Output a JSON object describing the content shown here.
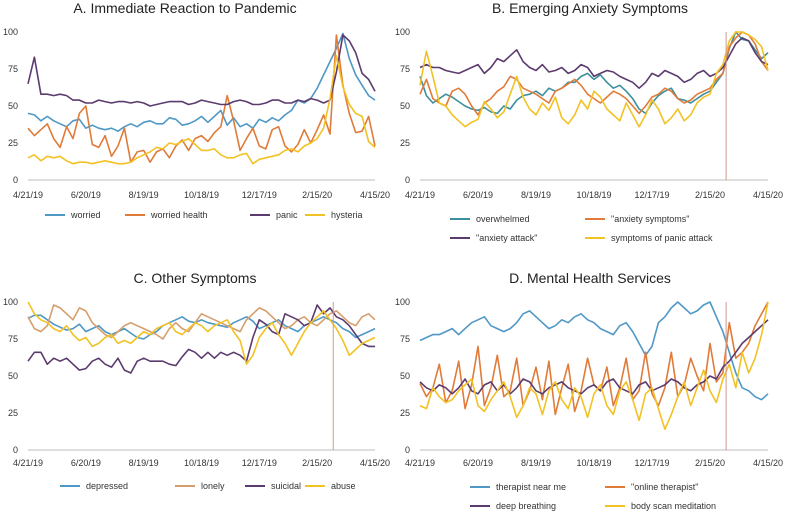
{
  "chart_data": [
    {
      "type": "line",
      "title": "A.  Immediate Reaction to Pandemic",
      "ylim": [
        0,
        100
      ],
      "yticks": [
        0,
        25,
        50,
        75,
        100
      ],
      "xticks": [
        "4/21/19",
        "6/20/19",
        "8/19/19",
        "10/18/19",
        "12/17/19",
        "2/15/20",
        "4/15/20"
      ],
      "grid": false,
      "legend": "bottom",
      "marker_line": false,
      "series": [
        {
          "name": "worried",
          "color": "#4f98c6",
          "values": [
            45,
            44,
            40,
            43,
            40,
            38,
            36,
            40,
            41,
            35,
            37,
            35,
            34,
            35,
            33,
            36,
            38,
            36,
            39,
            40,
            38,
            38,
            42,
            41,
            37,
            38,
            40,
            43,
            39,
            43,
            47,
            37,
            42,
            36,
            38,
            35,
            41,
            39,
            42,
            40,
            44,
            47,
            54,
            52,
            55,
            62,
            71,
            80,
            89,
            99,
            82,
            71,
            64,
            57,
            54
          ]
        },
        {
          "name": "worried health",
          "color": "#e07b39",
          "values": [
            35,
            30,
            34,
            38,
            28,
            22,
            36,
            28,
            45,
            50,
            24,
            22,
            30,
            16,
            23,
            35,
            12,
            19,
            20,
            12,
            19,
            21,
            15,
            23,
            27,
            20,
            28,
            30,
            26,
            32,
            36,
            57,
            40,
            20,
            28,
            35,
            23,
            21,
            34,
            36,
            23,
            19,
            24,
            34,
            25,
            34,
            44,
            31,
            98,
            64,
            45,
            32,
            33,
            43,
            23
          ]
        },
        {
          "name": "panic",
          "color": "#5c3b6e",
          "values": [
            65,
            83,
            58,
            58,
            57,
            58,
            57,
            54,
            54,
            52,
            52,
            54,
            53,
            52,
            53,
            53,
            52,
            53,
            52,
            50,
            51,
            52,
            53,
            53,
            53,
            51,
            52,
            54,
            53,
            52,
            51,
            51,
            53,
            54,
            53,
            51,
            51,
            52,
            54,
            54,
            52,
            52,
            54,
            53,
            55,
            54,
            52,
            54,
            73,
            98,
            94,
            86,
            72,
            68,
            60
          ]
        },
        {
          "name": "hysteria",
          "color": "#f2c224",
          "values": [
            15,
            17,
            13,
            16,
            15,
            16,
            13,
            11,
            12,
            12,
            11,
            12,
            13,
            12,
            11,
            11,
            12,
            15,
            17,
            19,
            22,
            21,
            25,
            24,
            26,
            28,
            24,
            20,
            20,
            21,
            17,
            15,
            15,
            17,
            18,
            11,
            14,
            15,
            16,
            17,
            20,
            21,
            19,
            23,
            25,
            28,
            35,
            55,
            84,
            63,
            51,
            45,
            43,
            26,
            22
          ]
        }
      ]
    },
    {
      "type": "line",
      "title": "B.  Emerging Anxiety Symptoms",
      "ylim": [
        0,
        100
      ],
      "yticks": [
        0,
        25,
        50,
        75,
        100
      ],
      "xticks": [
        "4/21/19",
        "6/20/19",
        "8/19/19",
        "10/18/19",
        "12/17/19",
        "2/15/20",
        "4/15/20"
      ],
      "grid": false,
      "legend": "bottom",
      "marker_line": true,
      "series": [
        {
          "name": "overwhelmed",
          "color": "#3c8f9c",
          "values": [
            70,
            57,
            52,
            55,
            58,
            56,
            53,
            50,
            48,
            47,
            49,
            46,
            45,
            50,
            48,
            54,
            57,
            58,
            60,
            57,
            62,
            60,
            62,
            66,
            66,
            70,
            72,
            68,
            71,
            66,
            62,
            64,
            60,
            55,
            48,
            45,
            52,
            57,
            60,
            62,
            55,
            54,
            52,
            55,
            58,
            60,
            66,
            72,
            89,
            100,
            95,
            94,
            88,
            82,
            86
          ]
        },
        {
          "name": "\"anxiety symptoms\"",
          "color": "#e07b39",
          "values": [
            58,
            68,
            55,
            52,
            50,
            60,
            62,
            58,
            50,
            44,
            52,
            55,
            60,
            63,
            70,
            68,
            62,
            60,
            58,
            55,
            52,
            60,
            62,
            65,
            68,
            64,
            58,
            55,
            52,
            56,
            60,
            58,
            55,
            50,
            45,
            50,
            56,
            58,
            62,
            60,
            55,
            52,
            54,
            58,
            60,
            62,
            68,
            72,
            90,
            96,
            100,
            98,
            92,
            80,
            74
          ]
        },
        {
          "name": "\"anxiety attack\"",
          "color": "#5c3b6e",
          "values": [
            76,
            78,
            76,
            76,
            74,
            73,
            72,
            74,
            76,
            78,
            72,
            76,
            82,
            80,
            84,
            88,
            80,
            76,
            74,
            78,
            73,
            74,
            76,
            72,
            74,
            78,
            76,
            70,
            72,
            74,
            73,
            70,
            68,
            66,
            62,
            66,
            72,
            70,
            74,
            72,
            70,
            66,
            68,
            72,
            74,
            70,
            72,
            76,
            84,
            92,
            96,
            94,
            86,
            80,
            78
          ]
        },
        {
          "name": "symptoms of panic attack",
          "color": "#f2c224",
          "values": [
            64,
            87,
            70,
            52,
            50,
            44,
            40,
            36,
            39,
            41,
            53,
            48,
            42,
            46,
            58,
            70,
            56,
            48,
            44,
            52,
            47,
            56,
            42,
            38,
            44,
            54,
            48,
            60,
            56,
            48,
            44,
            40,
            52,
            44,
            36,
            44,
            54,
            48,
            38,
            42,
            48,
            40,
            44,
            52,
            56,
            58,
            72,
            78,
            94,
            100,
            100,
            98,
            95,
            90,
            74
          ]
        }
      ]
    },
    {
      "type": "line",
      "title": "C.  Other Symptoms",
      "ylim": [
        0,
        100
      ],
      "yticks": [
        0,
        25,
        50,
        75,
        100
      ],
      "xticks": [
        "4/21/19",
        "6/20/19",
        "8/19/19",
        "10/18/19",
        "12/17/19",
        "2/15/20",
        "4/15/20"
      ],
      "grid": false,
      "legend": "bottom",
      "marker_line": true,
      "series": [
        {
          "name": "depressed",
          "color": "#4f98c6",
          "values": [
            89,
            91,
            91,
            88,
            85,
            83,
            81,
            82,
            85,
            80,
            82,
            84,
            80,
            78,
            80,
            82,
            79,
            76,
            75,
            78,
            80,
            84,
            86,
            88,
            90,
            87,
            86,
            88,
            86,
            85,
            84,
            83,
            86,
            88,
            90,
            87,
            82,
            84,
            86,
            88,
            84,
            82,
            80,
            84,
            86,
            88,
            90,
            88,
            86,
            82,
            80,
            76,
            78,
            80,
            82
          ]
        },
        {
          "name": "lonely",
          "color": "#d69e6c",
          "values": [
            90,
            82,
            80,
            84,
            98,
            96,
            92,
            88,
            96,
            94,
            86,
            82,
            78,
            76,
            80,
            84,
            86,
            84,
            82,
            80,
            78,
            75,
            82,
            86,
            82,
            80,
            86,
            92,
            90,
            88,
            86,
            84,
            82,
            80,
            88,
            92,
            96,
            94,
            90,
            86,
            82,
            84,
            88,
            90,
            86,
            84,
            88,
            92,
            94,
            90,
            86,
            84,
            90,
            92,
            88
          ]
        },
        {
          "name": "suicidal",
          "color": "#5c3b6e",
          "values": [
            60,
            66,
            66,
            58,
            62,
            60,
            62,
            58,
            54,
            55,
            60,
            62,
            58,
            56,
            62,
            54,
            52,
            60,
            62,
            60,
            60,
            60,
            58,
            57,
            63,
            68,
            66,
            62,
            66,
            62,
            66,
            64,
            66,
            64,
            60,
            76,
            88,
            85,
            80,
            78,
            92,
            90,
            88,
            84,
            86,
            98,
            92,
            96,
            90,
            88,
            84,
            78,
            72,
            70,
            70
          ]
        },
        {
          "name": "abuse",
          "color": "#f2c224",
          "values": [
            100,
            92,
            88,
            86,
            82,
            80,
            84,
            78,
            74,
            76,
            70,
            72,
            76,
            78,
            72,
            74,
            72,
            76,
            80,
            78,
            82,
            84,
            86,
            80,
            78,
            82,
            86,
            84,
            80,
            84,
            86,
            88,
            80,
            74,
            58,
            64,
            76,
            82,
            86,
            78,
            72,
            64,
            72,
            80,
            86,
            90,
            94,
            88,
            82,
            74,
            64,
            68,
            72,
            74,
            76
          ]
        }
      ]
    },
    {
      "type": "line",
      "title": "D.  Mental Health Services",
      "ylim": [
        0,
        100
      ],
      "yticks": [
        0,
        25,
        50,
        75,
        100
      ],
      "xticks": [
        "4/21/19",
        "6/20/19",
        "8/19/19",
        "10/18/19",
        "12/17/19",
        "2/15/20",
        "4/15/20"
      ],
      "grid": false,
      "legend": "bottom",
      "marker_line": true,
      "series": [
        {
          "name": "therapist near me",
          "color": "#4f98c6",
          "values": [
            74,
            76,
            78,
            78,
            80,
            82,
            78,
            82,
            86,
            88,
            90,
            84,
            82,
            80,
            82,
            86,
            92,
            94,
            90,
            86,
            82,
            84,
            88,
            86,
            90,
            92,
            88,
            86,
            82,
            80,
            78,
            84,
            86,
            80,
            72,
            64,
            70,
            86,
            90,
            96,
            100,
            96,
            92,
            94,
            98,
            100,
            90,
            80,
            66,
            52,
            42,
            40,
            36,
            34,
            38
          ]
        },
        {
          "name": "\"online therapist\"",
          "color": "#e07b39",
          "values": [
            45,
            36,
            42,
            58,
            32,
            40,
            60,
            28,
            44,
            70,
            30,
            42,
            64,
            36,
            40,
            62,
            30,
            40,
            56,
            34,
            60,
            24,
            42,
            58,
            26,
            40,
            62,
            44,
            40,
            56,
            30,
            42,
            62,
            34,
            40,
            66,
            38,
            30,
            42,
            66,
            36,
            44,
            62,
            50,
            40,
            72,
            46,
            52,
            86,
            62,
            66,
            72,
            84,
            92,
            100
          ]
        },
        {
          "name": "deep breathing",
          "color": "#5c3b6e",
          "values": [
            46,
            42,
            40,
            44,
            42,
            38,
            42,
            48,
            40,
            38,
            44,
            46,
            40,
            44,
            38,
            42,
            48,
            46,
            40,
            38,
            42,
            44,
            46,
            42,
            40,
            38,
            42,
            44,
            40,
            46,
            48,
            42,
            40,
            38,
            44,
            46,
            40,
            42,
            44,
            48,
            46,
            42,
            40,
            44,
            46,
            50,
            48,
            56,
            60,
            66,
            72,
            76,
            80,
            84,
            88
          ]
        },
        {
          "name": "body scan meditation",
          "color": "#f2c224",
          "values": [
            30,
            28,
            42,
            36,
            32,
            34,
            40,
            44,
            48,
            30,
            26,
            34,
            40,
            46,
            36,
            22,
            30,
            42,
            38,
            24,
            40,
            46,
            34,
            28,
            42,
            36,
            22,
            38,
            44,
            30,
            24,
            40,
            46,
            34,
            20,
            38,
            42,
            28,
            14,
            24,
            36,
            46,
            30,
            42,
            54,
            40,
            32,
            48,
            58,
            42,
            66,
            52,
            62,
            78,
            100
          ]
        }
      ]
    }
  ]
}
